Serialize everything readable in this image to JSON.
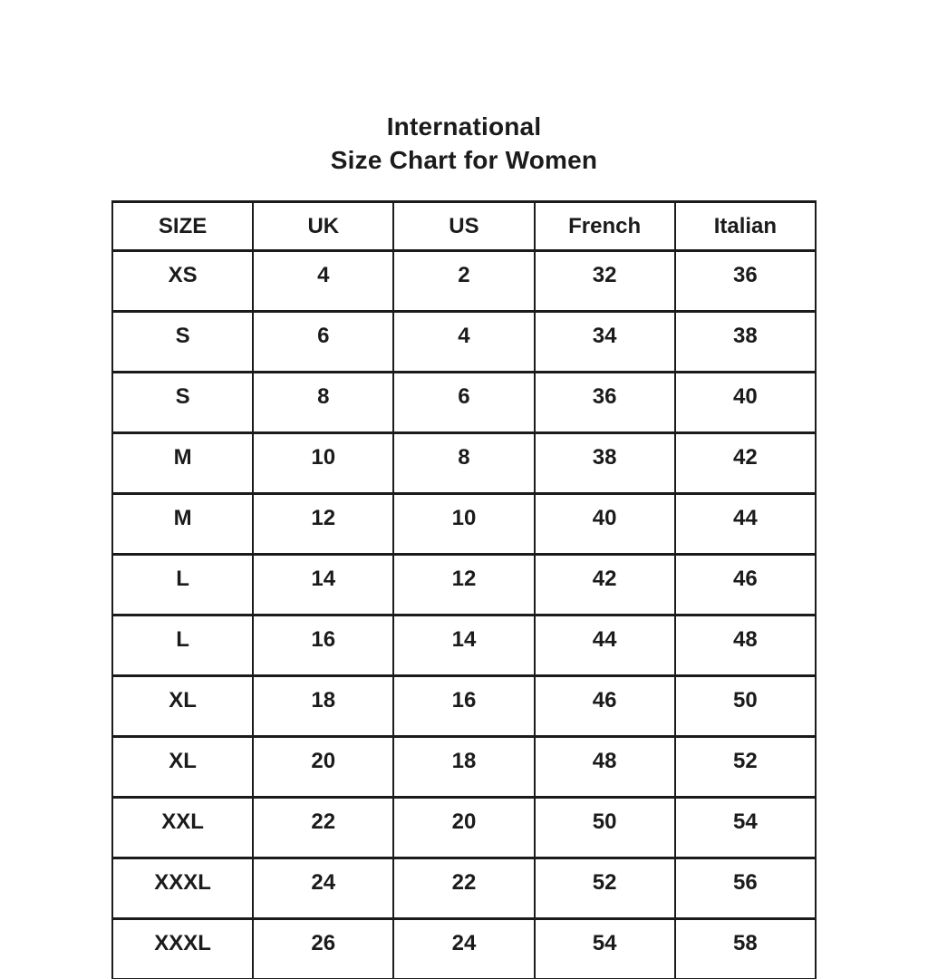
{
  "title": {
    "line1": "International",
    "line2": "Size Chart for Women"
  },
  "colors": {
    "background": "#ffffff",
    "text": "#1b1b1b",
    "border": "#1b1b1b"
  },
  "chart_data": {
    "type": "table",
    "title": "International Size Chart for Women",
    "columns": [
      "SIZE",
      "UK",
      "US",
      "French",
      "Italian"
    ],
    "rows": [
      [
        "XS",
        "4",
        "2",
        "32",
        "36"
      ],
      [
        "S",
        "6",
        "4",
        "34",
        "38"
      ],
      [
        "S",
        "8",
        "6",
        "36",
        "40"
      ],
      [
        "M",
        "10",
        "8",
        "38",
        "42"
      ],
      [
        "M",
        "12",
        "10",
        "40",
        "44"
      ],
      [
        "L",
        "14",
        "12",
        "42",
        "46"
      ],
      [
        "L",
        "16",
        "14",
        "44",
        "48"
      ],
      [
        "XL",
        "18",
        "16",
        "46",
        "50"
      ],
      [
        "XL",
        "20",
        "18",
        "48",
        "52"
      ],
      [
        "XXL",
        "22",
        "20",
        "50",
        "54"
      ],
      [
        "XXXL",
        "24",
        "22",
        "52",
        "56"
      ],
      [
        "XXXL",
        "26",
        "24",
        "54",
        "58"
      ]
    ]
  }
}
